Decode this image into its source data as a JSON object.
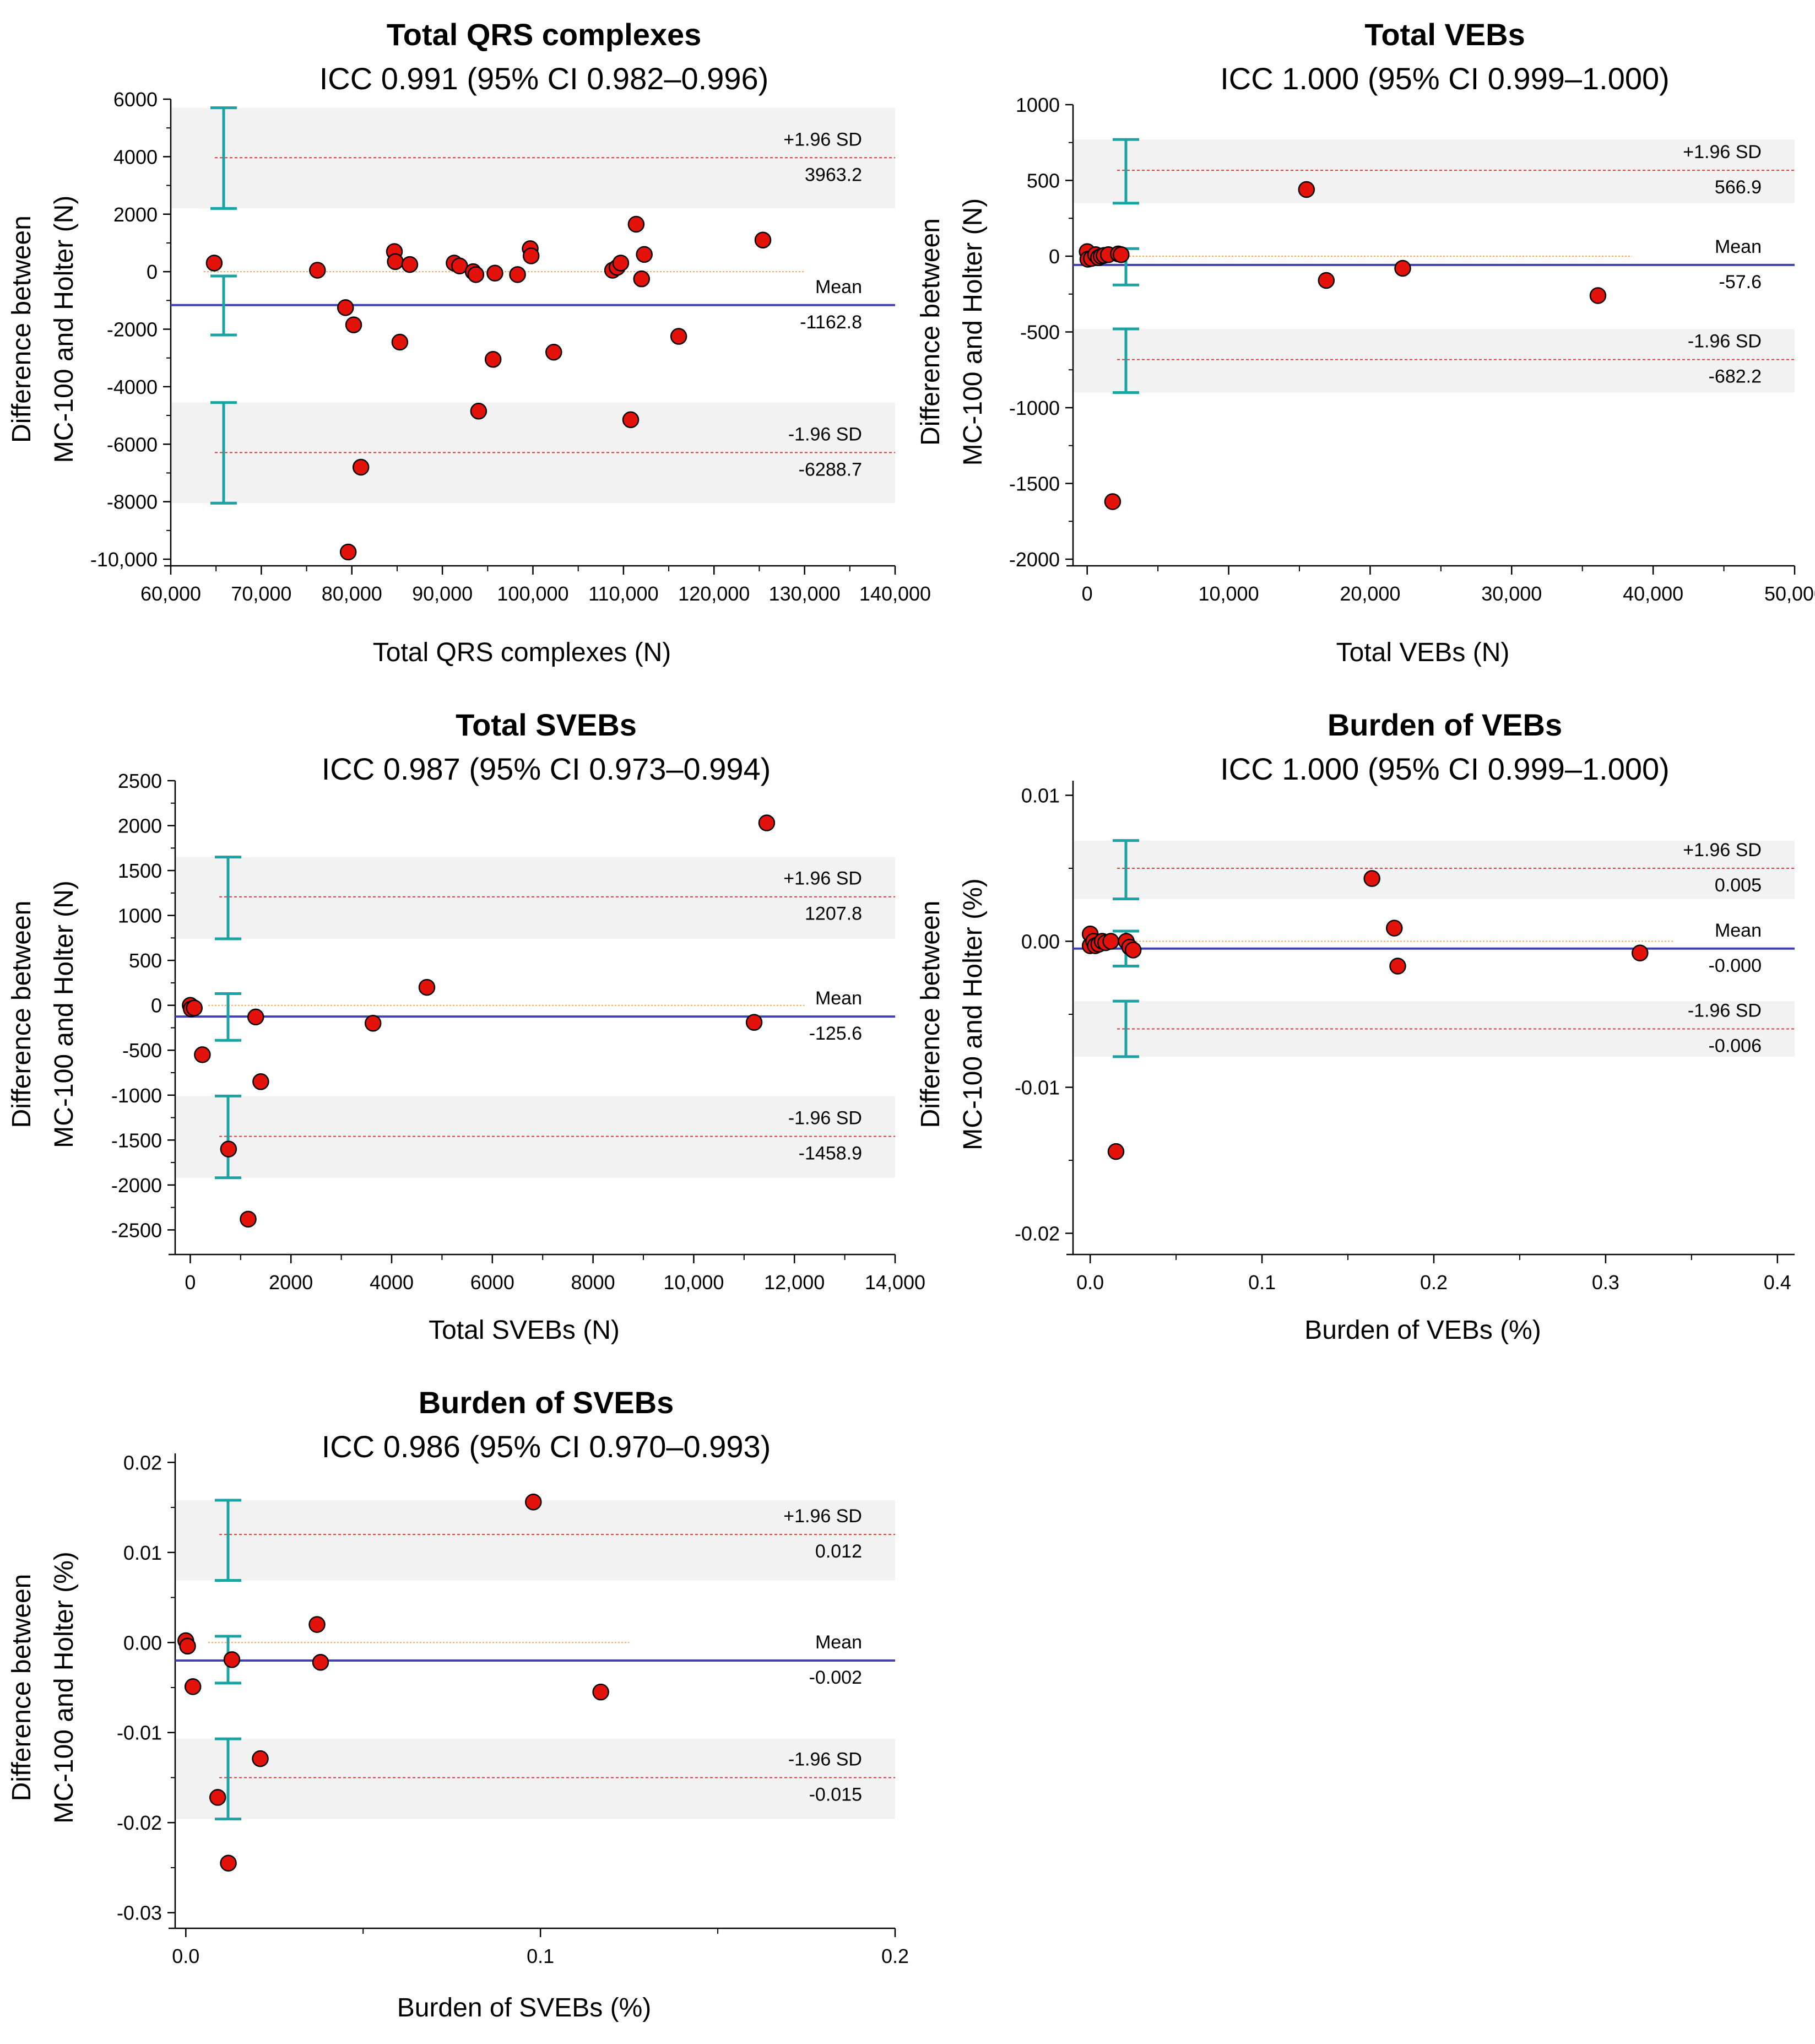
{
  "chart_data": [
    {
      "type": "scatter",
      "panel": "bland-altman",
      "title": "Total QRS complexes",
      "subtitle": "ICC 0.991 (95% CI 0.982–0.996)",
      "xlabel": "Total QRS complexes (N)",
      "ylabel_line1": "Difference between",
      "ylabel_line2": "MC-100 and Holter (N)",
      "xlim": [
        60000,
        140000
      ],
      "ylim": [
        -10000,
        6000
      ],
      "xticks": [
        60000,
        70000,
        80000,
        90000,
        100000,
        110000,
        120000,
        130000,
        140000
      ],
      "xtick_labels": [
        "60,000",
        "70,000",
        "80,000",
        "90,000",
        "100,000",
        "110,000",
        "120,000",
        "130,000",
        "140,000"
      ],
      "yticks": [
        6000,
        4000,
        2000,
        0,
        -2000,
        -4000,
        -6000,
        -8000,
        -10000
      ],
      "ytick_labels": [
        "6000",
        "4000",
        "2000",
        "0",
        "-2000",
        "-4000",
        "-6000",
        "-8000",
        "-10,000"
      ],
      "mean": -1162.8,
      "mean_ci": [
        -2200,
        -150
      ],
      "upper_loa": 3963.2,
      "upper_ci": [
        2200,
        5700
      ],
      "lower_loa": -6288.7,
      "lower_ci": [
        -8050,
        -4550
      ],
      "zero_line_xmax": 130000,
      "labels": {
        "upper": "+1.96 SD",
        "mean": "Mean",
        "lower": "-1.96 SD",
        "upper_value": "3963.2",
        "mean_value": "-1162.8",
        "lower_value": "-6288.7"
      },
      "points": [
        [
          64800,
          300
        ],
        [
          76200,
          50
        ],
        [
          79300,
          -1250
        ],
        [
          80200,
          -1850
        ],
        [
          81000,
          -6800
        ],
        [
          79600,
          -9750
        ],
        [
          84700,
          700
        ],
        [
          84800,
          350
        ],
        [
          85300,
          -2450
        ],
        [
          86400,
          250
        ],
        [
          91300,
          300
        ],
        [
          91900,
          200
        ],
        [
          93400,
          0
        ],
        [
          93700,
          -100
        ],
        [
          94000,
          -4850
        ],
        [
          95600,
          -3050
        ],
        [
          95800,
          -50
        ],
        [
          98300,
          -100
        ],
        [
          99700,
          800
        ],
        [
          99800,
          550
        ],
        [
          102300,
          -2800
        ],
        [
          108800,
          50
        ],
        [
          109300,
          150
        ],
        [
          109700,
          300
        ],
        [
          110800,
          -5150
        ],
        [
          111400,
          1650
        ],
        [
          112000,
          -250
        ],
        [
          112300,
          600
        ],
        [
          116100,
          -2250
        ],
        [
          125400,
          1100
        ]
      ]
    },
    {
      "type": "scatter",
      "panel": "bland-altman",
      "title": "Total VEBs",
      "subtitle": "ICC 1.000 (95% CI 0.999–1.000)",
      "xlabel": "Total VEBs (N)",
      "ylabel_line1": "Difference between",
      "ylabel_line2": "MC-100 and Holter (N)",
      "xlim": [
        -1000,
        50000
      ],
      "ylim": [
        -2000,
        1000
      ],
      "xticks": [
        0,
        10000,
        20000,
        30000,
        40000,
        50000
      ],
      "xtick_labels": [
        "0",
        "10,000",
        "20,000",
        "30,000",
        "40,000",
        "50,000"
      ],
      "yticks": [
        1000,
        500,
        0,
        -500,
        -1000,
        -1500,
        -2000
      ],
      "ytick_labels": [
        "1000",
        "500",
        "0",
        "-500",
        "-1000",
        "-1500",
        "-2000"
      ],
      "mean": -57.6,
      "mean_ci": [
        -190,
        50
      ],
      "upper_loa": 566.9,
      "upper_ci": [
        350,
        770
      ],
      "lower_loa": -682.2,
      "lower_ci": [
        -900,
        -480
      ],
      "zero_line_xmax": 38500,
      "labels": {
        "upper": "+1.96 SD",
        "mean": "Mean",
        "lower": "-1.96 SD",
        "upper_value": "566.9",
        "mean_value": "-57.6",
        "lower_value": "-682.2"
      },
      "points": [
        [
          0,
          30
        ],
        [
          50,
          -20
        ],
        [
          300,
          -15
        ],
        [
          600,
          10
        ],
        [
          800,
          -10
        ],
        [
          1000,
          0
        ],
        [
          1200,
          5
        ],
        [
          1500,
          10
        ],
        [
          2200,
          15
        ],
        [
          2400,
          10
        ],
        [
          1800,
          -1620
        ],
        [
          15500,
          440
        ],
        [
          16900,
          -160
        ],
        [
          22300,
          -80
        ],
        [
          36100,
          -260
        ]
      ]
    },
    {
      "type": "scatter",
      "panel": "bland-altman",
      "title": "Total SVEBs",
      "subtitle": "ICC 0.987 (95% CI 0.973–0.994)",
      "xlabel": "Total SVEBs (N)",
      "ylabel_line1": "Difference between",
      "ylabel_line2": "MC-100 and Holter (N)",
      "xlim": [
        -300,
        14000
      ],
      "ylim": [
        -2700,
        2500
      ],
      "xticks": [
        0,
        2000,
        4000,
        6000,
        8000,
        10000,
        12000,
        14000
      ],
      "xtick_labels": [
        "0",
        "2000",
        "4000",
        "6000",
        "8000",
        "10,000",
        "12,000",
        "14,000"
      ],
      "yticks": [
        2500,
        2000,
        1500,
        1000,
        500,
        0,
        -500,
        -1000,
        -1500,
        -2000,
        -2500
      ],
      "ytick_labels": [
        "2500",
        "2000",
        "1500",
        "1000",
        "500",
        "0",
        "-500",
        "-1000",
        "-1500",
        "-2000",
        "-2500"
      ],
      "mean": -125.6,
      "mean_ci": [
        -390,
        130
      ],
      "upper_loa": 1207.8,
      "upper_ci": [
        740,
        1650
      ],
      "lower_loa": -1458.9,
      "lower_ci": [
        -1920,
        -1010
      ],
      "zero_line_xmax": 12200,
      "labels": {
        "upper": "+1.96 SD",
        "mean": "Mean",
        "lower": "-1.96 SD",
        "upper_value": "1207.8",
        "mean_value": "-125.6",
        "lower_value": "-1458.9"
      },
      "points": [
        [
          0,
          0
        ],
        [
          20,
          -40
        ],
        [
          80,
          -30
        ],
        [
          240,
          -550
        ],
        [
          760,
          -1600
        ],
        [
          1150,
          -2380
        ],
        [
          1300,
          -130
        ],
        [
          1400,
          -850
        ],
        [
          3630,
          -200
        ],
        [
          4700,
          200
        ],
        [
          11200,
          -190
        ],
        [
          11450,
          2030
        ]
      ]
    },
    {
      "type": "scatter",
      "panel": "bland-altman",
      "title": "Burden of VEBs",
      "subtitle": "ICC 1.000 (95% CI 0.999–1.000)",
      "xlabel": "Burden of VEBs (%)",
      "ylabel_line1": "Difference between",
      "ylabel_line2": "MC-100 and Holter (%)",
      "xlim": [
        -0.01,
        0.41
      ],
      "ylim": [
        -0.021,
        0.011
      ],
      "xticks": [
        0.0,
        0.1,
        0.2,
        0.3,
        0.4
      ],
      "xtick_labels": [
        "0.0",
        "0.1",
        "0.2",
        "0.3",
        "0.4"
      ],
      "yticks": [
        0.01,
        0.0,
        -0.01,
        -0.02
      ],
      "ytick_labels": [
        "0.01",
        "0.00",
        "-0.01",
        "-0.02"
      ],
      "mean": -0.0005,
      "mean_ci": [
        -0.0017,
        0.0007
      ],
      "upper_loa": 0.005,
      "upper_ci": [
        0.0029,
        0.0069
      ],
      "lower_loa": -0.006,
      "lower_ci": [
        -0.0079,
        -0.0041
      ],
      "zero_line_xmax": 0.34,
      "labels": {
        "upper": "+1.96 SD",
        "mean": "Mean",
        "lower": "-1.96 SD",
        "upper_value": "0.005",
        "mean_value": "-0.000",
        "lower_value": "-0.006"
      },
      "points": [
        [
          0.0,
          0.0005
        ],
        [
          0.0,
          -0.0003
        ],
        [
          0.002,
          0.0
        ],
        [
          0.003,
          -0.0003
        ],
        [
          0.005,
          -0.0002
        ],
        [
          0.007,
          0.0
        ],
        [
          0.009,
          -0.0001
        ],
        [
          0.012,
          0.0
        ],
        [
          0.015,
          -0.0144
        ],
        [
          0.021,
          0.0
        ],
        [
          0.023,
          -0.0004
        ],
        [
          0.025,
          -0.0006
        ],
        [
          0.164,
          0.0043
        ],
        [
          0.177,
          0.0009
        ],
        [
          0.179,
          -0.0017
        ],
        [
          0.32,
          -0.0008
        ]
      ]
    },
    {
      "type": "scatter",
      "panel": "bland-altman",
      "title": "Burden of SVEBs",
      "subtitle": "ICC 0.986 (95% CI 0.970–0.993)",
      "xlabel": "Burden of SVEBs (%)",
      "ylabel_line1": "Difference between",
      "ylabel_line2": "MC-100 and Holter (%)",
      "xlim": [
        -0.003,
        0.2
      ],
      "ylim": [
        -0.031,
        0.021
      ],
      "xticks": [
        0.0,
        0.1,
        0.2
      ],
      "xtick_labels": [
        "0.0",
        "0.1",
        "0.2"
      ],
      "yticks": [
        0.02,
        0.01,
        0.0,
        -0.01,
        -0.02,
        -0.03
      ],
      "ytick_labels": [
        "0.02",
        "0.01",
        "0.00",
        "-0.01",
        "-0.02",
        "-0.03"
      ],
      "mean": -0.002,
      "mean_ci": [
        -0.0045,
        0.0007
      ],
      "upper_loa": 0.012,
      "upper_ci": [
        0.0069,
        0.0158
      ],
      "lower_loa": -0.015,
      "lower_ci": [
        -0.0196,
        -0.0107
      ],
      "zero_line_xmax": 0.125,
      "labels": {
        "upper": "+1.96 SD",
        "mean": "Mean",
        "lower": "-1.96 SD",
        "upper_value": "0.012",
        "mean_value": "-0.002",
        "lower_value": "-0.015"
      },
      "points": [
        [
          0.0,
          0.0002
        ],
        [
          0.0005,
          -0.0004
        ],
        [
          0.002,
          -0.0049
        ],
        [
          0.009,
          -0.0172
        ],
        [
          0.012,
          -0.0245
        ],
        [
          0.013,
          -0.0019
        ],
        [
          0.021,
          -0.0129
        ],
        [
          0.037,
          0.002
        ],
        [
          0.038,
          -0.0022
        ],
        [
          0.098,
          0.0156
        ],
        [
          0.117,
          -0.0055
        ]
      ]
    }
  ]
}
